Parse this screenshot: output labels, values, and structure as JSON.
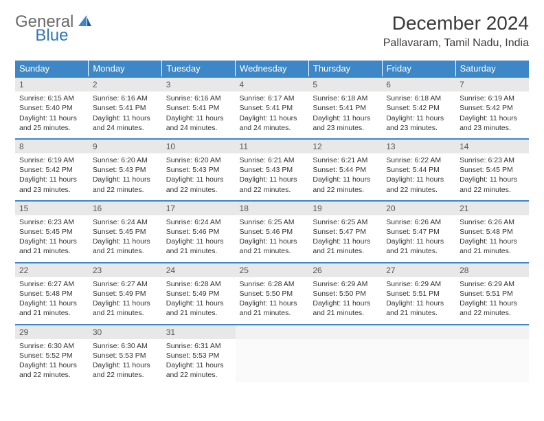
{
  "logo": {
    "general": "General",
    "blue": "Blue"
  },
  "title": {
    "month": "December 2024",
    "location": "Pallavaram, Tamil Nadu, India"
  },
  "colors": {
    "header_bg": "#3d87c6",
    "header_fg": "#ffffff",
    "daynum_bg": "#e8e8e8",
    "row_border": "#3d87c6",
    "logo_gray": "#6a6a6a",
    "logo_blue": "#2f76b8",
    "text": "#333333"
  },
  "weekdays": [
    "Sunday",
    "Monday",
    "Tuesday",
    "Wednesday",
    "Thursday",
    "Friday",
    "Saturday"
  ],
  "weeks": [
    [
      {
        "n": "1",
        "sr": "Sunrise: 6:15 AM",
        "ss": "Sunset: 5:40 PM",
        "d1": "Daylight: 11 hours",
        "d2": "and 25 minutes."
      },
      {
        "n": "2",
        "sr": "Sunrise: 6:16 AM",
        "ss": "Sunset: 5:41 PM",
        "d1": "Daylight: 11 hours",
        "d2": "and 24 minutes."
      },
      {
        "n": "3",
        "sr": "Sunrise: 6:16 AM",
        "ss": "Sunset: 5:41 PM",
        "d1": "Daylight: 11 hours",
        "d2": "and 24 minutes."
      },
      {
        "n": "4",
        "sr": "Sunrise: 6:17 AM",
        "ss": "Sunset: 5:41 PM",
        "d1": "Daylight: 11 hours",
        "d2": "and 24 minutes."
      },
      {
        "n": "5",
        "sr": "Sunrise: 6:18 AM",
        "ss": "Sunset: 5:41 PM",
        "d1": "Daylight: 11 hours",
        "d2": "and 23 minutes."
      },
      {
        "n": "6",
        "sr": "Sunrise: 6:18 AM",
        "ss": "Sunset: 5:42 PM",
        "d1": "Daylight: 11 hours",
        "d2": "and 23 minutes."
      },
      {
        "n": "7",
        "sr": "Sunrise: 6:19 AM",
        "ss": "Sunset: 5:42 PM",
        "d1": "Daylight: 11 hours",
        "d2": "and 23 minutes."
      }
    ],
    [
      {
        "n": "8",
        "sr": "Sunrise: 6:19 AM",
        "ss": "Sunset: 5:42 PM",
        "d1": "Daylight: 11 hours",
        "d2": "and 23 minutes."
      },
      {
        "n": "9",
        "sr": "Sunrise: 6:20 AM",
        "ss": "Sunset: 5:43 PM",
        "d1": "Daylight: 11 hours",
        "d2": "and 22 minutes."
      },
      {
        "n": "10",
        "sr": "Sunrise: 6:20 AM",
        "ss": "Sunset: 5:43 PM",
        "d1": "Daylight: 11 hours",
        "d2": "and 22 minutes."
      },
      {
        "n": "11",
        "sr": "Sunrise: 6:21 AM",
        "ss": "Sunset: 5:43 PM",
        "d1": "Daylight: 11 hours",
        "d2": "and 22 minutes."
      },
      {
        "n": "12",
        "sr": "Sunrise: 6:21 AM",
        "ss": "Sunset: 5:44 PM",
        "d1": "Daylight: 11 hours",
        "d2": "and 22 minutes."
      },
      {
        "n": "13",
        "sr": "Sunrise: 6:22 AM",
        "ss": "Sunset: 5:44 PM",
        "d1": "Daylight: 11 hours",
        "d2": "and 22 minutes."
      },
      {
        "n": "14",
        "sr": "Sunrise: 6:23 AM",
        "ss": "Sunset: 5:45 PM",
        "d1": "Daylight: 11 hours",
        "d2": "and 22 minutes."
      }
    ],
    [
      {
        "n": "15",
        "sr": "Sunrise: 6:23 AM",
        "ss": "Sunset: 5:45 PM",
        "d1": "Daylight: 11 hours",
        "d2": "and 21 minutes."
      },
      {
        "n": "16",
        "sr": "Sunrise: 6:24 AM",
        "ss": "Sunset: 5:45 PM",
        "d1": "Daylight: 11 hours",
        "d2": "and 21 minutes."
      },
      {
        "n": "17",
        "sr": "Sunrise: 6:24 AM",
        "ss": "Sunset: 5:46 PM",
        "d1": "Daylight: 11 hours",
        "d2": "and 21 minutes."
      },
      {
        "n": "18",
        "sr": "Sunrise: 6:25 AM",
        "ss": "Sunset: 5:46 PM",
        "d1": "Daylight: 11 hours",
        "d2": "and 21 minutes."
      },
      {
        "n": "19",
        "sr": "Sunrise: 6:25 AM",
        "ss": "Sunset: 5:47 PM",
        "d1": "Daylight: 11 hours",
        "d2": "and 21 minutes."
      },
      {
        "n": "20",
        "sr": "Sunrise: 6:26 AM",
        "ss": "Sunset: 5:47 PM",
        "d1": "Daylight: 11 hours",
        "d2": "and 21 minutes."
      },
      {
        "n": "21",
        "sr": "Sunrise: 6:26 AM",
        "ss": "Sunset: 5:48 PM",
        "d1": "Daylight: 11 hours",
        "d2": "and 21 minutes."
      }
    ],
    [
      {
        "n": "22",
        "sr": "Sunrise: 6:27 AM",
        "ss": "Sunset: 5:48 PM",
        "d1": "Daylight: 11 hours",
        "d2": "and 21 minutes."
      },
      {
        "n": "23",
        "sr": "Sunrise: 6:27 AM",
        "ss": "Sunset: 5:49 PM",
        "d1": "Daylight: 11 hours",
        "d2": "and 21 minutes."
      },
      {
        "n": "24",
        "sr": "Sunrise: 6:28 AM",
        "ss": "Sunset: 5:49 PM",
        "d1": "Daylight: 11 hours",
        "d2": "and 21 minutes."
      },
      {
        "n": "25",
        "sr": "Sunrise: 6:28 AM",
        "ss": "Sunset: 5:50 PM",
        "d1": "Daylight: 11 hours",
        "d2": "and 21 minutes."
      },
      {
        "n": "26",
        "sr": "Sunrise: 6:29 AM",
        "ss": "Sunset: 5:50 PM",
        "d1": "Daylight: 11 hours",
        "d2": "and 21 minutes."
      },
      {
        "n": "27",
        "sr": "Sunrise: 6:29 AM",
        "ss": "Sunset: 5:51 PM",
        "d1": "Daylight: 11 hours",
        "d2": "and 21 minutes."
      },
      {
        "n": "28",
        "sr": "Sunrise: 6:29 AM",
        "ss": "Sunset: 5:51 PM",
        "d1": "Daylight: 11 hours",
        "d2": "and 22 minutes."
      }
    ],
    [
      {
        "n": "29",
        "sr": "Sunrise: 6:30 AM",
        "ss": "Sunset: 5:52 PM",
        "d1": "Daylight: 11 hours",
        "d2": "and 22 minutes."
      },
      {
        "n": "30",
        "sr": "Sunrise: 6:30 AM",
        "ss": "Sunset: 5:53 PM",
        "d1": "Daylight: 11 hours",
        "d2": "and 22 minutes."
      },
      {
        "n": "31",
        "sr": "Sunrise: 6:31 AM",
        "ss": "Sunset: 5:53 PM",
        "d1": "Daylight: 11 hours",
        "d2": "and 22 minutes."
      },
      {
        "empty": true
      },
      {
        "empty": true
      },
      {
        "empty": true
      },
      {
        "empty": true
      }
    ]
  ]
}
